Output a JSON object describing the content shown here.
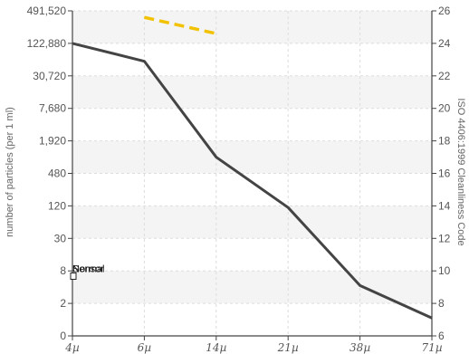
{
  "chart_data": {
    "type": "line",
    "title": "",
    "xlabel": "",
    "ylabel": "number of particles (per 1 ml)",
    "y2label": "ISO 4406:1999 Cleanliness Code",
    "x_ticks": [
      "4",
      "6",
      "14",
      "21",
      "38",
      "71"
    ],
    "x_unit": "µ",
    "y_ticks": [
      "0",
      "2",
      "8",
      "30",
      "120",
      "480",
      "1,920",
      "7,680",
      "30,720",
      "122,880",
      "491,520"
    ],
    "y2_ticks": [
      "6",
      "8",
      "10",
      "12",
      "14",
      "16",
      "18",
      "20",
      "22",
      "24",
      "26"
    ],
    "y2lim": [
      6,
      26
    ],
    "grid": true,
    "legend_position": "left",
    "series": [
      {
        "name": "Sensor",
        "color": "#444444",
        "style": "solid",
        "y2_values": [
          24.0,
          22.9,
          17.0,
          13.9,
          9.1,
          7.1
        ]
      },
      {
        "name": "Normal",
        "color": "#f2c200",
        "style": "dashed",
        "y2_values": [
          null,
          25.6,
          24.6,
          null,
          null,
          null
        ]
      }
    ]
  },
  "colors": {
    "axis": "#444444",
    "grid": "#dddddd",
    "band": "#f4f4f4"
  }
}
